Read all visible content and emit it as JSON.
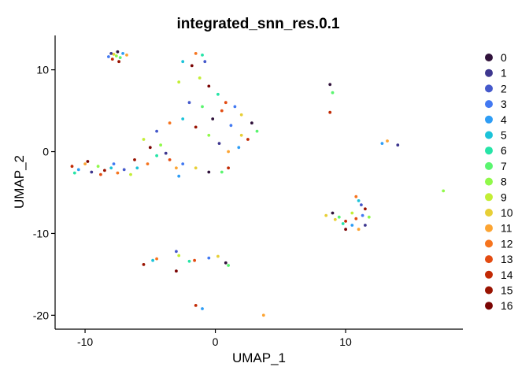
{
  "chart_data": {
    "type": "scatter",
    "title": "integrated_snn_res.0.1",
    "xlabel": "UMAP_1",
    "ylabel": "UMAP_2",
    "xlim": [
      -12.3,
      19.0
    ],
    "ylim": [
      -21.7,
      14.2
    ],
    "xticks": [
      -10,
      0,
      10
    ],
    "yticks": [
      10,
      0,
      -10,
      -20
    ],
    "grid": false,
    "legend_position": "right",
    "legend": [
      {
        "label": "0",
        "color": "#30123B"
      },
      {
        "label": "1",
        "color": "#3E378F"
      },
      {
        "label": "2",
        "color": "#4559CB"
      },
      {
        "label": "3",
        "color": "#4279F2"
      },
      {
        "label": "4",
        "color": "#2E9DF5"
      },
      {
        "label": "5",
        "color": "#1BC3D9"
      },
      {
        "label": "6",
        "color": "#26E4A7"
      },
      {
        "label": "7",
        "color": "#5AF56F"
      },
      {
        "label": "8",
        "color": "#90F94A"
      },
      {
        "label": "9",
        "color": "#C3EE35"
      },
      {
        "label": "10",
        "color": "#E7CF36"
      },
      {
        "label": "11",
        "color": "#FCA432"
      },
      {
        "label": "12",
        "color": "#F6741E"
      },
      {
        "label": "13",
        "color": "#E34B11"
      },
      {
        "label": "14",
        "color": "#C22A04"
      },
      {
        "label": "15",
        "color": "#991301"
      },
      {
        "label": "16",
        "color": "#7A0403"
      }
    ],
    "clusters": [
      {
        "region": "upper-left island",
        "points": [
          [
            -8.2,
            11.6
          ],
          [
            -7.8,
            11.9
          ],
          [
            -7.5,
            12.2
          ],
          [
            -7.3,
            11.5
          ],
          [
            -7.9,
            11.3
          ],
          [
            -7.1,
            12.0
          ],
          [
            -6.8,
            11.8
          ],
          [
            -8.0,
            12.0
          ],
          [
            -7.6,
            11.7
          ],
          [
            -7.4,
            11.0
          ]
        ]
      },
      {
        "region": "main hub",
        "points": [
          [
            -2.5,
            11.0
          ],
          [
            -1.5,
            12.0
          ],
          [
            -0.8,
            11.0
          ],
          [
            -1.2,
            9.0
          ],
          [
            -0.5,
            8.0
          ],
          [
            0.2,
            7.0
          ],
          [
            0.8,
            6.0
          ],
          [
            1.5,
            5.5
          ],
          [
            2.0,
            4.5
          ],
          [
            2.8,
            3.5
          ],
          [
            3.2,
            2.5
          ],
          [
            2.5,
            1.5
          ],
          [
            1.8,
            0.5
          ],
          [
            1.0,
            0.0
          ],
          [
            0.3,
            1.0
          ],
          [
            -0.5,
            2.0
          ],
          [
            -1.5,
            3.0
          ],
          [
            -2.5,
            4.0
          ],
          [
            -3.5,
            3.5
          ],
          [
            -4.5,
            2.5
          ],
          [
            -5.5,
            1.5
          ],
          [
            -5.0,
            0.5
          ],
          [
            -4.5,
            -0.5
          ],
          [
            -3.5,
            -1.0
          ],
          [
            -2.5,
            -1.5
          ],
          [
            -1.5,
            -2.0
          ],
          [
            -0.5,
            -2.5
          ],
          [
            0.5,
            -2.5
          ],
          [
            1.0,
            -2.0
          ],
          [
            -2.8,
            -3.0
          ],
          [
            -3.0,
            -2.0
          ],
          [
            -3.8,
            -0.2
          ],
          [
            -4.2,
            0.8
          ],
          [
            -6.2,
            -1.0
          ],
          [
            -6.0,
            -2.0
          ],
          [
            -5.2,
            -1.5
          ],
          [
            -2.0,
            6.0
          ],
          [
            -2.8,
            8.5
          ],
          [
            -1.8,
            10.5
          ],
          [
            -1.0,
            11.8
          ],
          [
            0.5,
            5.0
          ],
          [
            1.2,
            3.2
          ],
          [
            2.0,
            2.0
          ],
          [
            -0.2,
            4.0
          ],
          [
            -1.0,
            5.5
          ]
        ]
      },
      {
        "region": "left arm",
        "points": [
          [
            -11.0,
            -1.8
          ],
          [
            -10.5,
            -2.2
          ],
          [
            -10.0,
            -1.5
          ],
          [
            -9.5,
            -2.5
          ],
          [
            -9.0,
            -1.8
          ],
          [
            -8.5,
            -2.3
          ],
          [
            -8.0,
            -2.0
          ],
          [
            -7.5,
            -2.6
          ],
          [
            -7.0,
            -2.2
          ],
          [
            -6.5,
            -2.8
          ],
          [
            -9.8,
            -1.2
          ],
          [
            -10.8,
            -2.6
          ],
          [
            -8.8,
            -2.8
          ],
          [
            -7.8,
            -1.5
          ]
        ]
      },
      {
        "region": "right island",
        "points": [
          [
            8.5,
            -7.8
          ],
          [
            9.0,
            -7.5
          ],
          [
            9.5,
            -8.0
          ],
          [
            10.0,
            -8.5
          ],
          [
            10.5,
            -9.0
          ],
          [
            11.0,
            -9.5
          ],
          [
            11.5,
            -9.0
          ],
          [
            11.8,
            -8.0
          ],
          [
            11.5,
            -7.0
          ],
          [
            11.0,
            -6.0
          ],
          [
            10.8,
            -5.5
          ],
          [
            11.2,
            -6.5
          ],
          [
            10.5,
            -7.5
          ],
          [
            10.0,
            -9.5
          ],
          [
            9.8,
            -8.8
          ],
          [
            10.8,
            -8.2
          ],
          [
            11.3,
            -7.8
          ],
          [
            9.2,
            -8.3
          ]
        ]
      },
      {
        "region": "small scattered groups",
        "points": [
          [
            8.8,
            8.2
          ],
          [
            9.0,
            7.2
          ],
          [
            8.8,
            4.8
          ],
          [
            12.8,
            1.0
          ],
          [
            13.2,
            1.3
          ],
          [
            14.0,
            0.8
          ],
          [
            17.5,
            -4.8
          ],
          [
            -5.5,
            -13.8
          ],
          [
            -4.8,
            -13.3
          ],
          [
            -4.5,
            -13.1
          ],
          [
            -3.0,
            -12.2
          ],
          [
            -2.8,
            -12.7
          ],
          [
            -3.0,
            -14.6
          ],
          [
            -2.0,
            -13.4
          ],
          [
            -1.6,
            -13.3
          ],
          [
            -0.5,
            -13.0
          ],
          [
            0.2,
            -12.8
          ],
          [
            0.8,
            -13.6
          ],
          [
            1.0,
            -13.9
          ],
          [
            -1.5,
            -18.8
          ],
          [
            -1.0,
            -19.2
          ],
          [
            3.7,
            -20.0
          ]
        ]
      }
    ]
  }
}
